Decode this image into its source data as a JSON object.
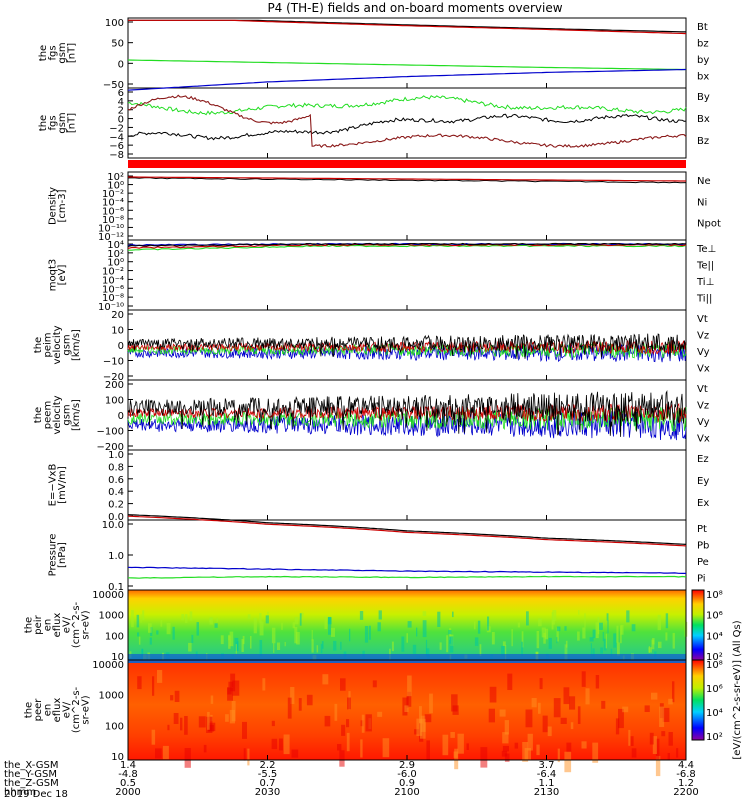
{
  "title": "P4 (TH-E) fields and on-board moments overview",
  "colors": {
    "black": "#000000",
    "red": "#cc0000",
    "green": "#22dd22",
    "blue": "#0000cc",
    "darkred": "#8b1a1a"
  },
  "panels": [
    {
      "id": "fgs",
      "ylabel": [
        "the",
        "fgs",
        "gsm",
        "[nT]"
      ],
      "ticks": [
        "100",
        "50",
        "0",
        "−50"
      ],
      "legend": [
        "Bt",
        "bz",
        "by",
        "bx"
      ],
      "legend_colors": [
        "black",
        "red",
        "green",
        "blue"
      ]
    },
    {
      "id": "fgs-gse",
      "ylabel": [
        "the",
        "fgs",
        "gsm",
        "[nT]"
      ],
      "ticks": [
        "6",
        "4",
        "2",
        "0",
        "−2",
        "−4",
        "−6",
        "−8"
      ],
      "legend": [
        "By",
        "Bx",
        "Bz"
      ],
      "legend_colors": [
        "green",
        "black",
        "darkred"
      ]
    },
    {
      "id": "density",
      "ylabel": [
        "Density",
        "[cm-3]"
      ],
      "ticks": [
        "10²",
        "10⁰",
        "10⁻²",
        "10⁻⁴",
        "10⁻⁶",
        "10⁻⁸",
        "10⁻¹⁰",
        "10⁻¹²"
      ],
      "legend": [
        "Ne",
        "Ni",
        "Npot"
      ],
      "legend_colors": [
        "red",
        "black",
        "blue"
      ]
    },
    {
      "id": "temp",
      "ylabel": [
        "moqt3",
        "[eV]"
      ],
      "ticks": [
        "10⁴",
        "10²",
        "10⁰",
        "10⁻²",
        "10⁻⁴",
        "10⁻⁶",
        "10⁻⁸",
        "10⁻¹⁰"
      ],
      "legend": [
        "Te⊥",
        "Te||",
        "Ti⊥",
        "Ti||"
      ],
      "legend_colors": [
        "red",
        "black",
        "blue",
        "green"
      ]
    },
    {
      "id": "peim",
      "ylabel": [
        "the",
        "peim",
        "velocity",
        "gsm",
        "[km/s]"
      ],
      "ticks": [
        "20",
        "10",
        "0",
        "−10",
        "−20"
      ],
      "legend": [
        "Vt",
        "Vz",
        "Vy",
        "Vx"
      ],
      "legend_colors": [
        "black",
        "red",
        "green",
        "blue"
      ]
    },
    {
      "id": "peem",
      "ylabel": [
        "the",
        "peem",
        "velocity",
        "gsm",
        "[km/s]"
      ],
      "ticks": [
        "200",
        "100",
        "0",
        "−100",
        "−200"
      ],
      "legend": [
        "Vt",
        "Vz",
        "Vy",
        "Vx"
      ],
      "legend_colors": [
        "black",
        "red",
        "green",
        "blue"
      ]
    },
    {
      "id": "efield",
      "ylabel": [
        "E=−VxB",
        "[mV/m]"
      ],
      "ticks": [
        "1.0",
        "0.8",
        "0.6",
        "0.4",
        "0.2",
        "0.0"
      ],
      "legend": [
        "Ez",
        "Ey",
        "Ex"
      ],
      "legend_colors": [
        "red",
        "green",
        "blue"
      ]
    },
    {
      "id": "pressure",
      "ylabel": [
        "Pressure",
        "[nPa]"
      ],
      "ticks": [
        "10.0",
        "1.0",
        "0.1"
      ],
      "legend": [
        "Pt",
        "Pb",
        "Pe",
        "Pi"
      ],
      "legend_colors": [
        "black",
        "red",
        "green",
        "blue"
      ]
    },
    {
      "id": "peir",
      "ylabel": [
        "the",
        "peir",
        "en",
        "eflux",
        "eV/",
        "(cm^2-s-",
        "sr-eV)"
      ],
      "ticks": [
        "10000",
        "1000",
        "100",
        "10"
      ],
      "legend": [],
      "legend_colors": []
    },
    {
      "id": "peer",
      "ylabel": [
        "the",
        "peer",
        "en",
        "eflux",
        "eV/",
        "(cm^2-s-",
        "sr-eV)"
      ],
      "ticks": [
        "10000",
        "1000",
        "100",
        "10"
      ],
      "legend": [],
      "legend_colors": []
    }
  ],
  "colorbar": {
    "ticks": [
      "10⁸",
      "10⁶",
      "10⁴",
      "10²"
    ],
    "label": "[eV/(cm^2-s-sr-eV)] (All Qs)"
  },
  "xaxis": {
    "labels": [
      "the_X-GSM",
      "the_Y-GSM",
      "the_Z-GSM",
      "hhmm",
      "2019 Dec 18"
    ],
    "columns": [
      [
        "1.4",
        "-4.8",
        "0.5",
        "2000"
      ],
      [
        "2.2",
        "-5.5",
        "0.7",
        "2030"
      ],
      [
        "2.9",
        "-6.0",
        "0.9",
        "2100"
      ],
      [
        "3.7",
        "-6.4",
        "1.1",
        "2130"
      ],
      [
        "4.4",
        "-6.8",
        "1.2",
        "2200"
      ]
    ]
  },
  "chart_data": {
    "type": "line",
    "title": "P4 (TH-E) fields and on-board moments overview",
    "x": [
      "2000",
      "2030",
      "2100",
      "2130",
      "2200"
    ],
    "series": [
      {
        "name": "Bt",
        "values": [
          115,
          103,
          93,
          84,
          76
        ]
      },
      {
        "name": "bz",
        "values": [
          113,
          101,
          91,
          82,
          72
        ]
      },
      {
        "name": "by",
        "values": [
          8,
          2,
          -4,
          -10,
          -15
        ]
      },
      {
        "name": "bx",
        "values": [
          -65,
          -45,
          -32,
          -22,
          -15
        ]
      },
      {
        "name": "Pt",
        "values": [
          20,
          11,
          6,
          3.5,
          2.2
        ]
      },
      {
        "name": "Pi",
        "values": [
          0.4,
          0.35,
          0.3,
          0.28,
          0.26
        ]
      },
      {
        "name": "Pe",
        "values": [
          0.18,
          0.2,
          0.19,
          0.2,
          0.2
        ]
      }
    ]
  }
}
